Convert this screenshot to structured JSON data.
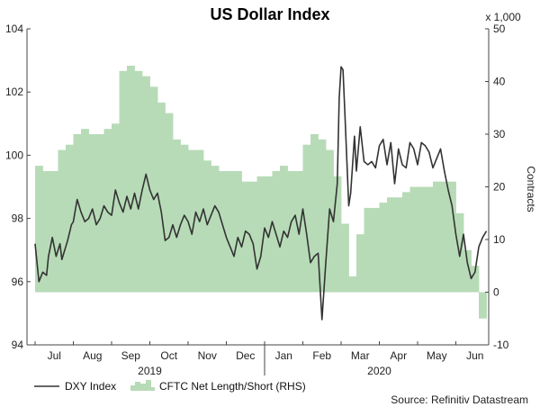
{
  "chart_data": {
    "type": "line",
    "title": "US Dollar Index",
    "source": "Source: Refinitiv Datastream",
    "left_axis": {
      "ylim": [
        94,
        104
      ],
      "ticks": [
        94,
        96,
        98,
        100,
        102,
        104
      ]
    },
    "right_axis": {
      "label": "Contracts",
      "scale_label": "x 1,000",
      "ylim": [
        -10,
        50
      ],
      "ticks": [
        -10,
        0,
        10,
        20,
        30,
        40,
        50
      ]
    },
    "x_axis": {
      "month_labels": [
        "Jul",
        "Aug",
        "Sep",
        "Oct",
        "Nov",
        "Dec",
        "Jan",
        "Feb",
        "Mar",
        "Apr",
        "May",
        "Jun"
      ],
      "year_labels": [
        "2019",
        "2020"
      ]
    },
    "legend_placement": "bottom-left",
    "series": [
      {
        "name": "DXY Index",
        "axis": "left",
        "color": "#333333",
        "x": [
          0.0,
          0.1,
          0.2,
          0.3,
          0.35,
          0.45,
          0.55,
          0.65,
          0.7,
          0.8,
          0.85,
          0.95,
          1.0,
          1.1,
          1.2,
          1.3,
          1.4,
          1.5,
          1.6,
          1.7,
          1.8,
          1.9,
          2.0,
          2.1,
          2.2,
          2.3,
          2.4,
          2.5,
          2.6,
          2.7,
          2.8,
          2.9,
          3.0,
          3.1,
          3.2,
          3.3,
          3.4,
          3.5,
          3.6,
          3.7,
          3.8,
          3.9,
          4.0,
          4.1,
          4.2,
          4.3,
          4.4,
          4.5,
          4.6,
          4.7,
          4.8,
          4.9,
          5.0,
          5.1,
          5.2,
          5.3,
          5.4,
          5.5,
          5.6,
          5.7,
          5.8,
          5.9,
          6.0,
          6.1,
          6.2,
          6.3,
          6.4,
          6.5,
          6.6,
          6.7,
          6.8,
          6.9,
          7.0,
          7.1,
          7.2,
          7.3,
          7.4,
          7.5,
          7.6,
          7.7,
          7.8,
          7.9,
          7.95,
          8.0,
          8.05,
          8.1,
          8.2,
          8.25,
          8.35,
          8.4,
          8.5,
          8.6,
          8.7,
          8.8,
          8.9,
          9.0,
          9.1,
          9.2,
          9.3,
          9.4,
          9.5,
          9.6,
          9.7,
          9.8,
          9.9,
          10.0,
          10.1,
          10.2,
          10.3,
          10.4,
          10.5,
          10.6,
          10.7,
          10.8,
          10.9,
          11.0,
          11.1,
          11.2,
          11.3,
          11.4,
          11.5,
          11.6,
          11.7,
          11.8
        ],
        "y": [
          97.2,
          96.0,
          96.3,
          96.2,
          96.8,
          97.4,
          96.8,
          97.2,
          96.7,
          97.1,
          97.3,
          97.8,
          97.9,
          98.6,
          98.2,
          97.9,
          98.0,
          98.3,
          97.8,
          98.0,
          98.4,
          98.2,
          98.1,
          98.9,
          98.5,
          98.2,
          98.7,
          98.3,
          98.8,
          98.3,
          98.9,
          99.4,
          98.9,
          98.6,
          98.8,
          98.2,
          97.3,
          97.4,
          97.8,
          97.4,
          97.8,
          98.1,
          97.9,
          97.5,
          98.2,
          97.9,
          98.3,
          97.8,
          98.1,
          98.4,
          98.2,
          97.8,
          97.4,
          97.1,
          96.8,
          97.4,
          97.1,
          97.6,
          97.5,
          97.2,
          96.4,
          96.8,
          97.7,
          97.4,
          97.9,
          97.5,
          97.1,
          97.6,
          97.4,
          97.9,
          98.1,
          97.5,
          98.3,
          97.5,
          96.6,
          96.8,
          96.9,
          94.8,
          96.6,
          98.3,
          97.9,
          99.1,
          101.8,
          102.8,
          102.7,
          101.3,
          98.4,
          98.8,
          100.6,
          99.5,
          100.9,
          99.8,
          99.7,
          99.8,
          99.6,
          100.3,
          100.5,
          99.7,
          100.4,
          99.1,
          100.2,
          99.7,
          99.6,
          100.4,
          100.2,
          99.7,
          100.4,
          100.3,
          100.1,
          99.6,
          99.9,
          100.2,
          99.5,
          98.9,
          98.4,
          97.5,
          96.8,
          97.5,
          96.6,
          96.1,
          96.3,
          97.1,
          97.4,
          97.6
        ]
      },
      {
        "name": "CFTC Net Length/Short (RHS)",
        "axis": "right",
        "color": "#b7dbb7",
        "x": [
          0.0,
          0.2,
          0.4,
          0.6,
          0.8,
          1.0,
          1.2,
          1.4,
          1.6,
          1.8,
          2.0,
          2.2,
          2.4,
          2.6,
          2.8,
          3.0,
          3.2,
          3.4,
          3.6,
          3.8,
          4.0,
          4.2,
          4.4,
          4.6,
          4.8,
          5.0,
          5.2,
          5.4,
          5.6,
          5.8,
          6.0,
          6.2,
          6.4,
          6.6,
          6.8,
          7.0,
          7.2,
          7.4,
          7.6,
          7.8,
          8.0,
          8.2,
          8.4,
          8.6,
          8.8,
          9.0,
          9.2,
          9.4,
          9.6,
          9.8,
          10.0,
          10.2,
          10.4,
          10.6,
          10.8,
          11.0,
          11.2,
          11.4,
          11.6
        ],
        "y": [
          24,
          23,
          23,
          27,
          28,
          30,
          31,
          30,
          30,
          31,
          32,
          42,
          43,
          42,
          41,
          39,
          36,
          34,
          29,
          28,
          27,
          27,
          25,
          24,
          23,
          23,
          23,
          21,
          21,
          22,
          22,
          23,
          24,
          23,
          23,
          28,
          30,
          29,
          27,
          22,
          13,
          3,
          11,
          16,
          16,
          17,
          18,
          18,
          19,
          20,
          20,
          20,
          21,
          21,
          21,
          15,
          8,
          5,
          -5
        ]
      }
    ]
  }
}
